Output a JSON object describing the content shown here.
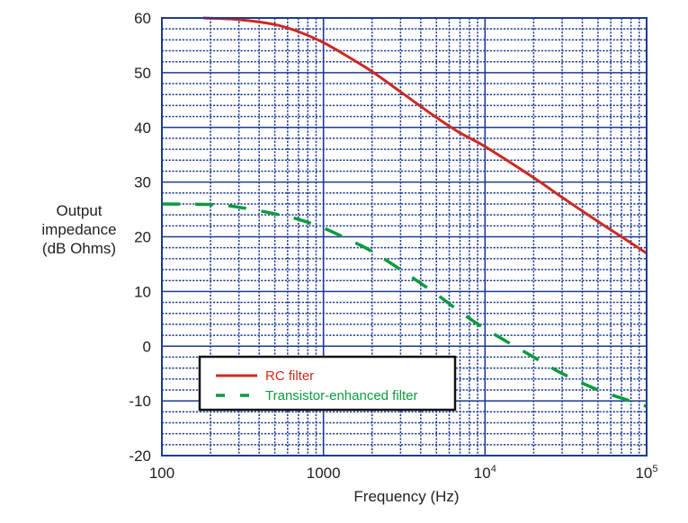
{
  "chart_data": {
    "type": "line",
    "title": "",
    "xlabel": "Frequency (Hz)",
    "ylabel": "Output impedance (dB Ohms)",
    "ylabel_lines": [
      "Output",
      "impedance",
      "(dB Ohms)"
    ],
    "xscale": "log",
    "xlim": [
      100,
      100000
    ],
    "ylim": [
      -20,
      60
    ],
    "grid": true,
    "xticks": [
      {
        "value": 100,
        "label": "100",
        "sup": ""
      },
      {
        "value": 1000,
        "label": "1000",
        "sup": ""
      },
      {
        "value": 10000,
        "label": "10",
        "sup": "4"
      },
      {
        "value": 100000,
        "label": "10",
        "sup": "5"
      }
    ],
    "yticks": [
      60,
      50,
      40,
      30,
      20,
      10,
      0,
      -10,
      -20
    ],
    "legend_position": "lower-left (inside plot)",
    "series": [
      {
        "name": "RC filter",
        "color": "#cc2a22",
        "style": "solid",
        "x": [
          180,
          300,
          500,
          700,
          1000,
          1500,
          2000,
          3000,
          5000,
          7000,
          10000,
          20000,
          30000,
          50000,
          70000,
          100000
        ],
        "y": [
          60,
          59.7,
          58.8,
          57.5,
          55.5,
          52.5,
          50.2,
          46.5,
          41.8,
          39.0,
          36.5,
          30.8,
          27.2,
          22.8,
          20.0,
          17.0
        ]
      },
      {
        "name": "Transistor-enhanced filter",
        "color": "#0c9a3f",
        "style": "dashed",
        "x": [
          100,
          200,
          300,
          500,
          700,
          1000,
          1500,
          2000,
          3000,
          5000,
          7000,
          10000,
          20000,
          30000,
          50000,
          70000,
          100000
        ],
        "y": [
          26.0,
          25.9,
          25.4,
          24.2,
          23.2,
          21.6,
          19.2,
          17.3,
          14.0,
          9.5,
          6.3,
          3.2,
          -2.0,
          -5.0,
          -8.0,
          -9.5,
          -11.0
        ]
      }
    ]
  },
  "colors": {
    "grid": "#1f3a93",
    "legend_border": "#111111"
  }
}
